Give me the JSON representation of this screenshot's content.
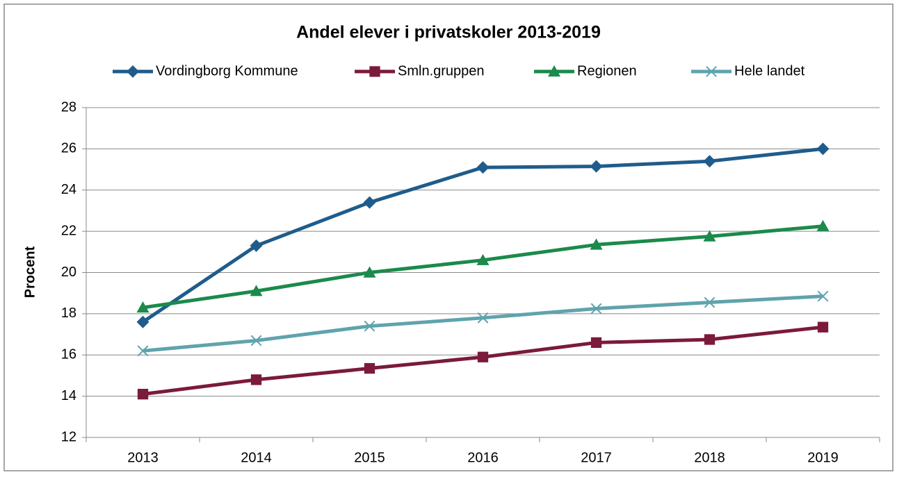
{
  "chart_data": {
    "type": "line",
    "title": "Andel elever i privatskoler 2013-2019",
    "y_label": "Procent",
    "categories": [
      "2013",
      "2014",
      "2015",
      "2016",
      "2017",
      "2018",
      "2019"
    ],
    "series": [
      {
        "name": "Vordingborg Kommune",
        "color": "#1f5c8b",
        "marker": "diamond",
        "values": [
          17.6,
          21.3,
          23.4,
          25.1,
          25.15,
          25.4,
          26.0
        ]
      },
      {
        "name": "Smln.gruppen",
        "color": "#7b1a3a",
        "marker": "square",
        "values": [
          14.1,
          14.8,
          15.35,
          15.9,
          16.6,
          16.75,
          17.35
        ]
      },
      {
        "name": "Regionen",
        "color": "#1b8a4b",
        "marker": "triangle",
        "values": [
          18.3,
          19.1,
          20.0,
          20.6,
          21.35,
          21.75,
          22.25
        ]
      },
      {
        "name": "Hele landet",
        "color": "#5fa3ad",
        "marker": "x",
        "values": [
          16.2,
          16.7,
          17.4,
          17.8,
          18.25,
          18.55,
          18.85
        ]
      }
    ],
    "ylim": [
      12,
      28
    ],
    "yticks": [
      12,
      14,
      16,
      18,
      20,
      22,
      24,
      26,
      28
    ],
    "grid": true,
    "legend": "top"
  }
}
